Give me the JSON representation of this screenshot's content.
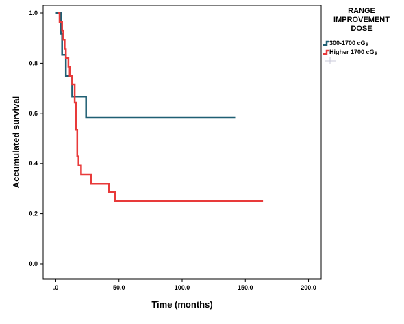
{
  "chart_data": {
    "type": "line",
    "title": "",
    "xlabel": "Time (months)",
    "ylabel": "Accumulated survival",
    "xlim": [
      -10,
      210
    ],
    "ylim": [
      -0.06,
      1.03
    ],
    "x_ticks": [
      {
        "value": 0,
        "label": ".0"
      },
      {
        "value": 50,
        "label": "50.0"
      },
      {
        "value": 100,
        "label": "100.0"
      },
      {
        "value": 150,
        "label": "150.0"
      },
      {
        "value": 200,
        "label": "200.0"
      }
    ],
    "y_ticks": [
      {
        "value": 0,
        "label": "0.0"
      },
      {
        "value": 0.2,
        "label": "0.2"
      },
      {
        "value": 0.4,
        "label": "0.4"
      },
      {
        "value": 0.6,
        "label": "0.6"
      },
      {
        "value": 0.8,
        "label": "0.8"
      },
      {
        "value": 1,
        "label": "1.0"
      }
    ],
    "grid": false,
    "legend": {
      "title_lines": [
        "RANGE",
        "IMPROVEMENT",
        "DOSE"
      ],
      "placement": "right"
    },
    "series": [
      {
        "name": "300-1700 cGy",
        "color": "#1f5f73",
        "step": true,
        "points": [
          [
            0,
            1.0
          ],
          [
            4,
            1.0
          ],
          [
            4,
            0.917
          ],
          [
            5,
            0.917
          ],
          [
            5,
            0.833
          ],
          [
            8,
            0.833
          ],
          [
            8,
            0.75
          ],
          [
            13,
            0.75
          ],
          [
            13,
            0.667
          ],
          [
            24,
            0.667
          ],
          [
            24,
            0.583
          ],
          [
            142,
            0.583
          ]
        ]
      },
      {
        "name": "Higher 1700 cGy",
        "color": "#e83a3a",
        "step": true,
        "points": [
          [
            2,
            1.0
          ],
          [
            3,
            1.0
          ],
          [
            3,
            0.964
          ],
          [
            5,
            0.964
          ],
          [
            5,
            0.929
          ],
          [
            6,
            0.929
          ],
          [
            6,
            0.893
          ],
          [
            7,
            0.893
          ],
          [
            7,
            0.857
          ],
          [
            8,
            0.857
          ],
          [
            8,
            0.821
          ],
          [
            10,
            0.821
          ],
          [
            10,
            0.786
          ],
          [
            11,
            0.786
          ],
          [
            11,
            0.75
          ],
          [
            13,
            0.75
          ],
          [
            13,
            0.714
          ],
          [
            15,
            0.714
          ],
          [
            15,
            0.643
          ],
          [
            16,
            0.643
          ],
          [
            16,
            0.536
          ],
          [
            17,
            0.536
          ],
          [
            17,
            0.429
          ],
          [
            18,
            0.429
          ],
          [
            18,
            0.393
          ],
          [
            20,
            0.393
          ],
          [
            20,
            0.357
          ],
          [
            28,
            0.357
          ],
          [
            28,
            0.321
          ],
          [
            42,
            0.321
          ],
          [
            42,
            0.286
          ],
          [
            47,
            0.286
          ],
          [
            47,
            0.25
          ],
          [
            164,
            0.25
          ]
        ]
      }
    ]
  }
}
